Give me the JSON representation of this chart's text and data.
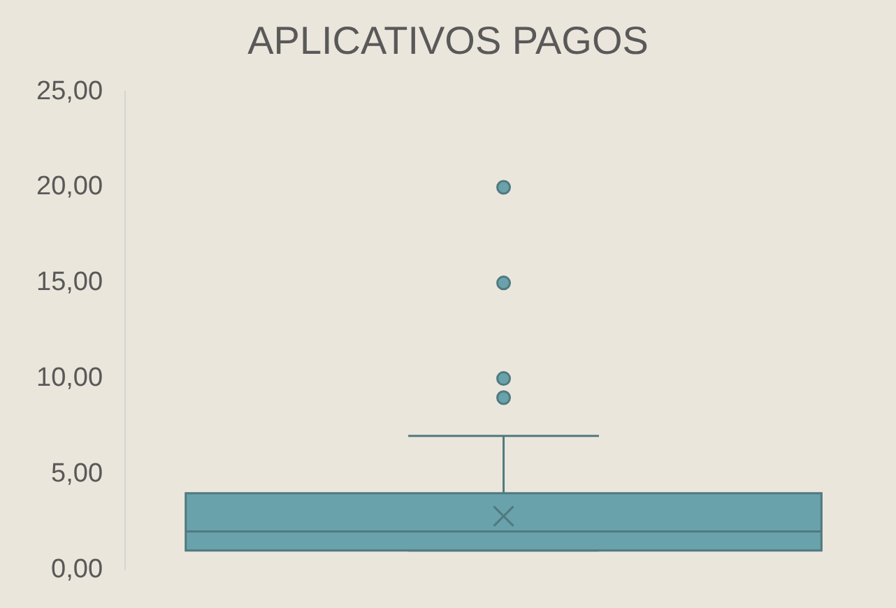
{
  "chart_data": {
    "type": "box",
    "title": "APLICATIVOS PAGOS",
    "categories": [
      null
    ],
    "color": "#6aa2ab",
    "boxes": [
      {
        "low": 1,
        "q1": 1,
        "median": 2,
        "q3": 4,
        "high": 7,
        "mean": 2.8,
        "outliers": [
          9,
          10,
          15,
          20
        ]
      }
    ],
    "ylim": [
      0,
      25
    ],
    "yticks": [
      {
        "value": 0,
        "label": "0,00"
      },
      {
        "value": 5,
        "label": "5,00"
      },
      {
        "value": 10,
        "label": "10,00"
      },
      {
        "value": 15,
        "label": "15,00"
      },
      {
        "value": 20,
        "label": "20,00"
      },
      {
        "value": 25,
        "label": "25,00"
      }
    ],
    "grid": false
  }
}
